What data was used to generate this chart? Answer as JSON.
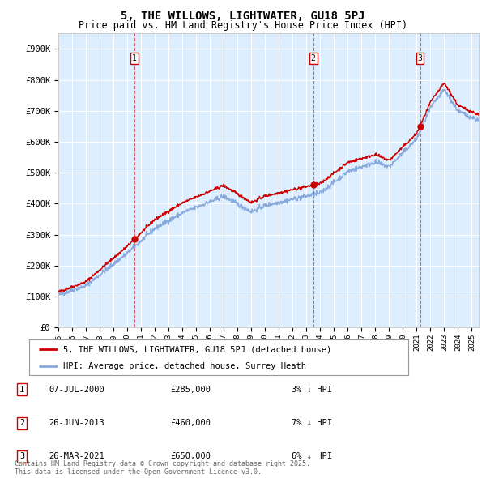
{
  "title": "5, THE WILLOWS, LIGHTWATER, GU18 5PJ",
  "subtitle": "Price paid vs. HM Land Registry's House Price Index (HPI)",
  "ylim": [
    0,
    950000
  ],
  "yticks": [
    0,
    100000,
    200000,
    300000,
    400000,
    500000,
    600000,
    700000,
    800000,
    900000
  ],
  "ytick_labels": [
    "£0",
    "£100K",
    "£200K",
    "£300K",
    "£400K",
    "£500K",
    "£600K",
    "£700K",
    "£800K",
    "£900K"
  ],
  "bg_color": "#ddeeff",
  "grid_color": "#ffffff",
  "hpi_color": "#88aadd",
  "price_color": "#cc0000",
  "sale_dates": [
    2000.52,
    2013.49,
    2021.24
  ],
  "sale_prices": [
    285000,
    460000,
    650000
  ],
  "sale_labels": [
    "1",
    "2",
    "3"
  ],
  "legend_price_label": "5, THE WILLOWS, LIGHTWATER, GU18 5PJ (detached house)",
  "legend_hpi_label": "HPI: Average price, detached house, Surrey Heath",
  "table_entries": [
    {
      "num": "1",
      "date": "07-JUL-2000",
      "price": "£285,000",
      "hpi": "3% ↓ HPI"
    },
    {
      "num": "2",
      "date": "26-JUN-2013",
      "price": "£460,000",
      "hpi": "7% ↓ HPI"
    },
    {
      "num": "3",
      "date": "26-MAR-2021",
      "price": "£650,000",
      "hpi": "6% ↓ HPI"
    }
  ],
  "footnote": "Contains HM Land Registry data © Crown copyright and database right 2025.\nThis data is licensed under the Open Government Licence v3.0.",
  "xmin": 1995.0,
  "xmax": 2025.5
}
